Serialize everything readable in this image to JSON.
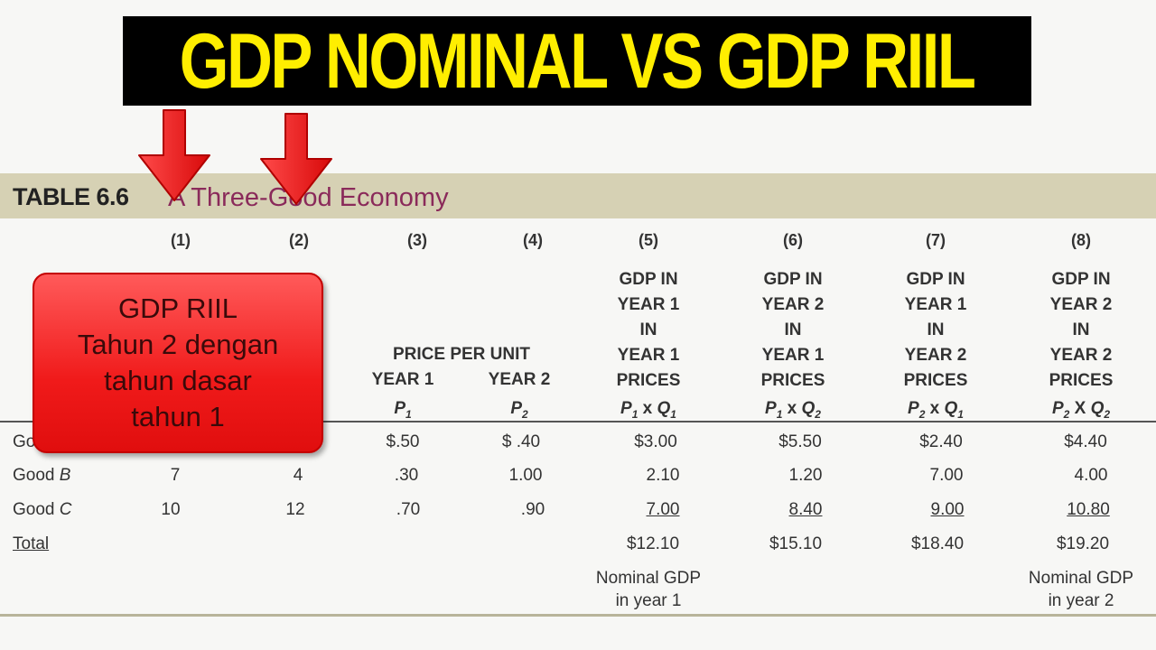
{
  "banner": {
    "title": "GDP NOMINAL VS GDP RIIL"
  },
  "table": {
    "label": "TABLE 6.6",
    "title": "A Three-Good Economy",
    "col_numbers": [
      "(1)",
      "(2)",
      "(3)",
      "(4)",
      "(5)",
      "(6)",
      "(7)",
      "(8)"
    ],
    "price_header": "PRICE PER UNIT",
    "price_years": [
      "YEAR 1",
      "YEAR 2"
    ],
    "gdp_headers": [
      [
        "GDP IN",
        "YEAR 1",
        "IN",
        "YEAR 1",
        "PRICES"
      ],
      [
        "GDP IN",
        "YEAR 2",
        "IN",
        "YEAR 1",
        "PRICES"
      ],
      [
        "GDP IN",
        "YEAR 1",
        "IN",
        "YEAR 2",
        "PRICES"
      ],
      [
        "GDP IN",
        "YEAR 2",
        "IN",
        "YEAR 2",
        "PRICES"
      ]
    ],
    "rows": [
      {
        "label_prefix": "Go",
        "label_italic": "",
        "c1": "",
        "c2": "",
        "c3": "$.50",
        "c4": "$  .40",
        "c5": "$3.00",
        "c6": "$5.50",
        "c7": "$2.40",
        "c8": "$4.40"
      },
      {
        "label_prefix": "Good ",
        "label_italic": "B",
        "c1": "7",
        "c2": "4",
        "c3": ".30",
        "c4": "1.00",
        "c5": "2.10",
        "c6": "1.20",
        "c7": "7.00",
        "c8": "4.00"
      },
      {
        "label_prefix": "Good ",
        "label_italic": "C",
        "c1": "10",
        "c2": "12",
        "c3": ".70",
        "c4": ".90",
        "c5": "7.00",
        "c6": "8.40",
        "c7": "9.00",
        "c8": "10.80"
      }
    ],
    "total": {
      "label": "Total",
      "c5": "$12.10",
      "c6": "$15.10",
      "c7": "$18.40",
      "c8": "$19.20"
    },
    "footnotes": {
      "c5": [
        "Nominal GDP",
        "in year 1"
      ],
      "c8": [
        "Nominal GDP",
        "in year 2"
      ]
    }
  },
  "note": {
    "lines": [
      "GDP RIIL",
      "Tahun 2 dengan",
      "tahun dasar",
      "tahun 1"
    ]
  },
  "colors": {
    "banner_bg": "#000000",
    "banner_text": "#ffee00",
    "band": "#d6d1b4",
    "title": "#8a2a5a",
    "note": "#f01a1a",
    "arrow": "#e81818"
  }
}
